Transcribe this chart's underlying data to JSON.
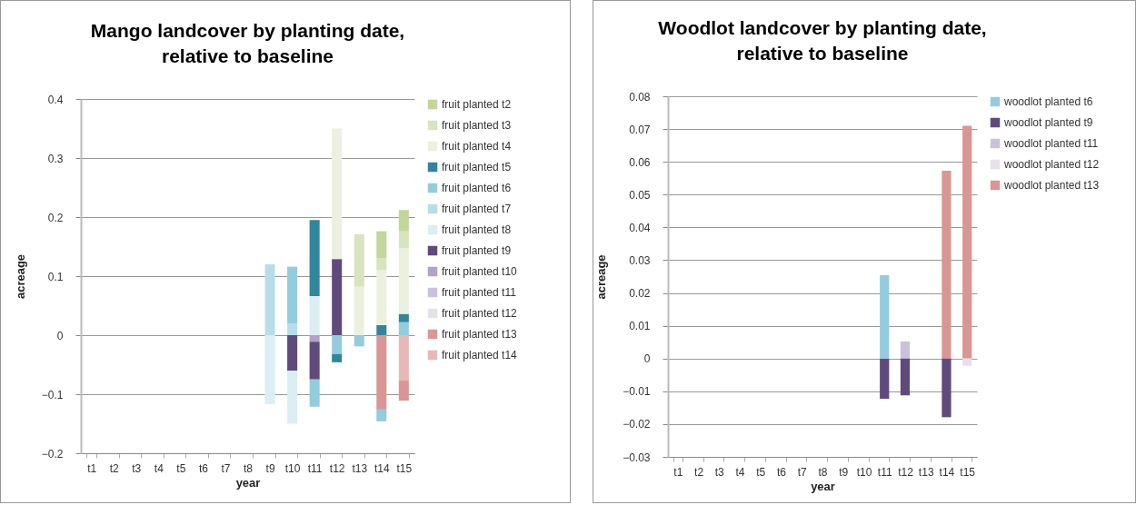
{
  "chart_data": [
    {
      "type": "bar",
      "title": "Mango landcover by planting date, relative to baseline",
      "xlabel": "year",
      "ylabel": "acreage",
      "stacked": true,
      "legend": "right",
      "grid": "y",
      "categories": [
        "t1",
        "t2",
        "t3",
        "t4",
        "t5",
        "t6",
        "t7",
        "t8",
        "t9",
        "t10",
        "t11",
        "t12",
        "t13",
        "t14",
        "t15"
      ],
      "ylim": [
        -0.2,
        0.4
      ],
      "yticks": [
        -0.2,
        -0.1,
        0,
        0.1,
        0.2,
        0.3,
        0.4
      ],
      "series": [
        {
          "name": "fruit planted t14",
          "color": "#e6b9b8",
          "values": [
            null,
            null,
            null,
            null,
            null,
            null,
            null,
            null,
            null,
            null,
            null,
            null,
            null,
            null,
            -0.077
          ]
        },
        {
          "name": "fruit planted t13",
          "color": "#d99694",
          "values": [
            null,
            null,
            null,
            null,
            null,
            null,
            null,
            null,
            null,
            null,
            null,
            null,
            null,
            -0.126,
            -0.034
          ]
        },
        {
          "name": "fruit planted t12",
          "color": "#e6e0ec",
          "values": [
            null,
            null,
            null,
            null,
            null,
            null,
            null,
            null,
            null,
            null,
            null,
            null,
            null,
            null,
            null
          ]
        },
        {
          "name": "fruit planted t11",
          "color": "#ccc1da",
          "values": [
            null,
            null,
            null,
            null,
            null,
            null,
            null,
            null,
            null,
            null,
            null,
            null,
            null,
            null,
            null
          ]
        },
        {
          "name": "fruit planted t10",
          "color": "#b3a2c7",
          "values": [
            null,
            null,
            null,
            null,
            null,
            null,
            null,
            null,
            null,
            null,
            -0.011,
            null,
            null,
            null,
            null
          ]
        },
        {
          "name": "fruit planted t9",
          "color": "#604a7b",
          "values": [
            null,
            null,
            null,
            null,
            null,
            null,
            null,
            null,
            null,
            -0.06,
            -0.064,
            0.129,
            null,
            null,
            null
          ]
        },
        {
          "name": "fruit planted t8",
          "color": "#dbeef4",
          "values": [
            null,
            null,
            null,
            null,
            null,
            null,
            null,
            null,
            -0.117,
            -0.09,
            0.066,
            null,
            null,
            null,
            null
          ]
        },
        {
          "name": "fruit planted t7",
          "color": "#b7dee8",
          "values": [
            null,
            null,
            null,
            null,
            null,
            null,
            null,
            null,
            0.12,
            0.02,
            null,
            null,
            null,
            null,
            null
          ]
        },
        {
          "name": "fruit planted t6",
          "color": "#93cddd",
          "values": [
            null,
            null,
            null,
            null,
            null,
            null,
            null,
            null,
            null,
            0.096,
            -0.046,
            -0.032,
            -0.019,
            -0.02,
            0.022
          ]
        },
        {
          "name": "fruit planted t5",
          "color": "#31859c",
          "values": [
            null,
            null,
            null,
            null,
            null,
            null,
            null,
            null,
            null,
            null,
            0.129,
            -0.014,
            null,
            0.017,
            0.014
          ]
        },
        {
          "name": "fruit planted t4",
          "color": "#ebf1de",
          "values": [
            null,
            null,
            null,
            null,
            null,
            null,
            null,
            null,
            null,
            null,
            null,
            0.221,
            0.082,
            0.093,
            0.111
          ]
        },
        {
          "name": "fruit planted t3",
          "color": "#d7e4bd",
          "values": [
            null,
            null,
            null,
            null,
            null,
            null,
            null,
            null,
            null,
            null,
            null,
            null,
            0.089,
            0.02,
            0.029
          ]
        },
        {
          "name": "fruit planted t2",
          "color": "#c3d69b",
          "values": [
            null,
            null,
            null,
            null,
            null,
            null,
            null,
            null,
            null,
            null,
            null,
            null,
            null,
            0.046,
            0.036
          ]
        }
      ]
    },
    {
      "type": "bar",
      "title": "Woodlot landcover by planting date, relative to baseline",
      "xlabel": "year",
      "ylabel": "acreage",
      "stacked": true,
      "legend": "right",
      "grid": "y",
      "categories": [
        "t1",
        "t2",
        "t3",
        "t4",
        "t5",
        "t6",
        "t7",
        "t8",
        "t9",
        "t10",
        "t11",
        "t12",
        "t13",
        "t14",
        "t15"
      ],
      "ylim": [
        -0.03,
        0.08
      ],
      "yticks": [
        -0.03,
        -0.02,
        -0.01,
        0,
        0.01,
        0.02,
        0.03,
        0.04,
        0.05,
        0.06,
        0.07,
        0.08
      ],
      "series": [
        {
          "name": "woodlot planted t13",
          "color": "#d99694",
          "values": [
            null,
            null,
            null,
            null,
            null,
            null,
            null,
            null,
            null,
            null,
            null,
            null,
            null,
            0.0573,
            0.071
          ]
        },
        {
          "name": "woodlot planted t12",
          "color": "#e6e0ec",
          "values": [
            null,
            null,
            null,
            null,
            null,
            null,
            null,
            null,
            null,
            null,
            null,
            null,
            null,
            null,
            -0.0022
          ]
        },
        {
          "name": "woodlot planted t11",
          "color": "#ccc1da",
          "values": [
            null,
            null,
            null,
            null,
            null,
            null,
            null,
            null,
            null,
            null,
            null,
            0.0052,
            null,
            null,
            null
          ]
        },
        {
          "name": "woodlot planted t9",
          "color": "#604a7b",
          "values": [
            null,
            null,
            null,
            null,
            null,
            null,
            null,
            null,
            null,
            null,
            -0.0123,
            -0.0112,
            null,
            -0.0179,
            null
          ]
        },
        {
          "name": "woodlot planted t6",
          "color": "#93cddd",
          "values": [
            null,
            null,
            null,
            null,
            null,
            null,
            null,
            null,
            null,
            null,
            0.0254,
            null,
            null,
            null,
            null
          ]
        }
      ]
    }
  ]
}
